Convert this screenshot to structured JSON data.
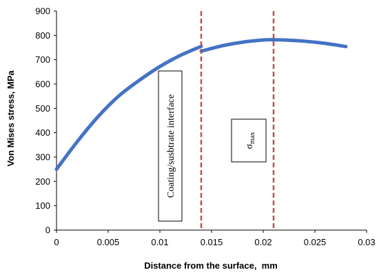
{
  "chart_data": {
    "type": "line",
    "title": "",
    "xlabel": "Distance from the surface,  mm",
    "ylabel": "Von Mises stress, MPa",
    "xlim": [
      0,
      0.03
    ],
    "ylim": [
      0,
      900
    ],
    "x_ticks": [
      "0",
      "0.005",
      "0.01",
      "0.015",
      "0.02",
      "0.025",
      "0.03"
    ],
    "x_tick_values": [
      0,
      0.005,
      0.01,
      0.015,
      0.02,
      0.025,
      0.03
    ],
    "y_ticks": [
      "0",
      "100",
      "200",
      "300",
      "400",
      "500",
      "600",
      "700",
      "800",
      "900"
    ],
    "y_tick_values": [
      0,
      100,
      200,
      300,
      400,
      500,
      600,
      700,
      800,
      900
    ],
    "grid": false,
    "legend": "none",
    "series_color": "#4472c4",
    "series": [
      {
        "segments": [
          {
            "x": [
              0,
              0.002,
              0.004,
              0.006,
              0.008,
              0.01,
              0.012,
              0.014
            ],
            "y": [
              250,
              363,
              465,
              550,
              615,
              672,
              718,
              755
            ]
          },
          {
            "x": [
              0.014,
              0.016,
              0.018,
              0.02,
              0.021,
              0.022,
              0.024,
              0.026,
              0.028
            ],
            "y": [
              735,
              757,
              772,
              781,
              782,
              781,
              776,
              767,
              754
            ]
          }
        ]
      }
    ],
    "vlines": [
      {
        "x": 0.014,
        "color": "#c0504d",
        "style": "dashed"
      },
      {
        "x": 0.021,
        "color": "#c0504d",
        "style": "dashed"
      }
    ],
    "annotations": [
      {
        "text": "Coating/susbtrate interface",
        "orientation": "vertical"
      },
      {
        "text": "σmax",
        "symbol": "σ",
        "subscript": "max",
        "orientation": "horizontal"
      }
    ]
  }
}
